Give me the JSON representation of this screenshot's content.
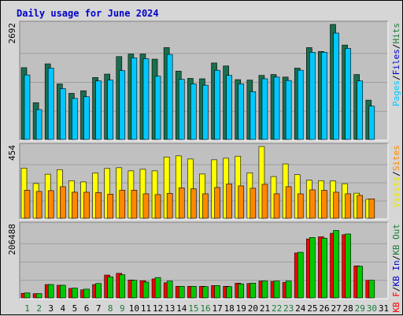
{
  "chart_data": {
    "type": "bar",
    "title": "Daily usage for June 2024",
    "categories": [
      "1",
      "2",
      "3",
      "4",
      "5",
      "6",
      "7",
      "8",
      "9",
      "10",
      "11",
      "12",
      "13",
      "14",
      "15",
      "16",
      "17",
      "18",
      "19",
      "20",
      "21",
      "22",
      "23",
      "24",
      "25",
      "26",
      "27",
      "28",
      "29",
      "30",
      "31"
    ],
    "weekend_days": [
      1,
      2,
      8,
      9,
      15,
      16,
      22,
      23,
      29,
      30
    ],
    "colors": {
      "title": "#0000c8",
      "weekday": "#000000",
      "weekend": "#1a7a3a",
      "grid": "#9e9e9e",
      "panel_bg": "#c0c0c0",
      "hits": "#1a6e4e",
      "pages": "#00c8ff",
      "files": "#00c8ff",
      "visits": "#ffff00",
      "sites": "#ff8800",
      "kb_in": "#00c800",
      "kb_out": "#cc0000",
      "kbf": "#ff0000"
    },
    "charts": [
      {
        "name": "hits-pages",
        "ymax_label": "2692",
        "ymax": 2692,
        "legend": [
          {
            "label": "Pages",
            "color": "#00c8ff"
          },
          {
            "label": "Files",
            "color": "#0000c8"
          },
          {
            "label": "Hits",
            "color": "#1a7a3a"
          }
        ],
        "series": [
          {
            "name": "Hits",
            "values": [
              1680,
              860,
              1770,
              1300,
              1080,
              1140,
              1450,
              1530,
              1940,
              2000,
              2000,
              1880,
              2150,
              1600,
              1430,
              1420,
              1790,
              1720,
              1400,
              1390,
              1500,
              1520,
              1460,
              1670,
              2150,
              2060,
              2692,
              2210,
              1520,
              920,
              0
            ]
          },
          {
            "name": "Pages",
            "values": [
              1510,
              700,
              1670,
              1190,
              960,
              1000,
              1370,
              1390,
              1610,
              1910,
              1890,
              1480,
              1990,
              1410,
              1300,
              1270,
              1620,
              1500,
              1300,
              1120,
              1420,
              1460,
              1380,
              1620,
              2040,
              2040,
              2490,
              2130,
              1370,
              780,
              0
            ]
          }
        ]
      },
      {
        "name": "visits-sites",
        "ymax_label": "454",
        "ymax": 454,
        "legend": [
          {
            "label": "Visits",
            "color": "#e8e800"
          },
          {
            "label": "Sites",
            "color": "#ff8800"
          }
        ],
        "series": [
          {
            "name": "Visits",
            "values": [
              318,
              220,
              279,
              308,
              238,
              230,
              287,
              315,
              320,
              300,
              310,
              300,
              388,
              395,
              375,
              280,
              370,
              380,
              393,
              288,
              454,
              264,
              344,
              276,
              241,
              238,
              236,
              219,
              159,
              120,
              0
            ]
          },
          {
            "name": "Sites",
            "values": [
              178,
              170,
              175,
              200,
              165,
              165,
              163,
              153,
              178,
              178,
              155,
              150,
              158,
              193,
              187,
              155,
              195,
              217,
              205,
              190,
              215,
              155,
              200,
              155,
              180,
              177,
              165,
              155,
              145,
              123,
              0
            ]
          }
        ]
      },
      {
        "name": "kbytes",
        "ymax_label": "206488",
        "ymax": 206488,
        "legend": [
          {
            "label": "KB F",
            "color": "#ff0000"
          },
          {
            "label": "KB In",
            "color": "#0000c8"
          },
          {
            "label": "KB Out",
            "color": "#1a7a3a"
          }
        ],
        "series": [
          {
            "name": "KB Out",
            "values": [
              13000,
              12000,
              38000,
              36000,
              27000,
              23000,
              38000,
              65000,
              70000,
              51000,
              49000,
              54000,
              43000,
              33000,
              33000,
              33000,
              35000,
              33000,
              42000,
              41000,
              48000,
              47000,
              44000,
              128000,
              168000,
              174000,
              184000,
              180000,
              91000,
              50000,
              0
            ]
          },
          {
            "name": "KB In",
            "values": [
              14000,
              12000,
              38000,
              36000,
              28000,
              25000,
              41000,
              60000,
              66000,
              50000,
              45000,
              58000,
              48000,
              33000,
              33000,
              32000,
              35000,
              32000,
              40000,
              42000,
              48000,
              48000,
              48000,
              130000,
              172000,
              170000,
              192000,
              182000,
              90000,
              50000,
              0
            ]
          }
        ]
      }
    ]
  }
}
